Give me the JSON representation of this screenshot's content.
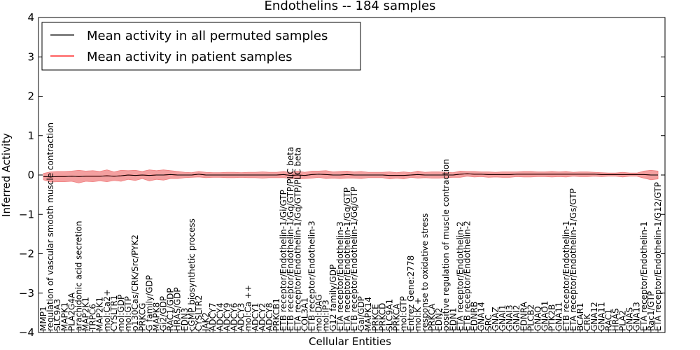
{
  "chart_data": {
    "type": "line",
    "title": "Endothelins -- 184 samples",
    "xlabel": "Cellular Entities",
    "ylabel": "Inferred Activity",
    "ylim": [
      -4,
      4
    ],
    "yticks": [
      "4",
      "3",
      "2",
      "1",
      "0",
      "−1",
      "−2",
      "−3",
      "−4"
    ],
    "ytick_values": [
      4,
      3,
      2,
      1,
      0,
      -1,
      -2,
      -3,
      -4
    ],
    "grid": false,
    "legend_position": "top-left",
    "legend": [
      {
        "label": "Mean activity in all permuted samples",
        "color": "#000000"
      },
      {
        "label": "Mean activity in patient samples",
        "color": "#ff0000"
      }
    ],
    "band_color": "#f08080",
    "categories": [
      "MMP1",
      "regulation of vascular smooth muscle contraction",
      "SLC9A3",
      "MAPK1",
      "PLA2G4A",
      "arachidonic acid secretion",
      "MAP2K1",
      "TRPC6",
      "MAP2K1",
      "mol:Ca2+",
      "CYSLTR1",
      "mol:GDP",
      "mol:GTP",
      "p130Cas/CRK/Src/PYK2",
      "PRKCG",
      "G family/GDP",
      "MAPK8",
      "Gi2/GDP",
      "RAC1/GDP",
      "HRAS/GDP",
      "EDN3",
      "cGMP biosynthetic process",
      "CYSLTR2",
      "JAK2",
      "ADCY7",
      "ADCY4",
      "ADCY9",
      "ADCY6",
      "ADCY3",
      "mol:Ca ++",
      "ADCY1",
      "ADCY2",
      "ADCY8",
      "PRKCB1",
      "ETB receptor/Endothelin-1/Gi/GTP",
      "ETB receptor/Endothelin-1/Gq/GTP/PLC beta",
      "ETA receptor/Endothelin-1/Gq/GTP/PLC beta",
      "COL3A1",
      "ETB receptor/Endothelin-3",
      "mol:DAG",
      "mol:IP3",
      "G12 family/GDP",
      "ETA receptor/Endothelin-3",
      "ETA receptor/Endothelin-1/Gq/GTP",
      "ETB receptor/Endothelin-1/Gq/GTP",
      "Gai/GDP",
      "MAPK14",
      "PRKCE",
      "PRKCD",
      "SLC9A1",
      "PRKCA",
      "mol:GTP",
      "Entrez Gene:2778",
      "mol:K +",
      "response to oxidative stress",
      "PRKCA",
      "EDN2",
      "positive regulation of muscle contraction",
      "EDN1",
      "ETA receptor/Endothelin-2",
      "ETB receptor/Endothelin-2",
      "EDNRB",
      "GNA14",
      "SRC",
      "GNAZ",
      "GNAI1",
      "GNAI3",
      "GNAI2",
      "EDNRA",
      "PLCB2",
      "GNAQ",
      "GNAO1",
      "PTK2B",
      "GNA11",
      "ETB receptor/Endothelin-1",
      "ETA receptor/Endothelin-1/Gs/GTP",
      "BCAR1",
      "CRK",
      "GNA12",
      "GNA11",
      "RAC1",
      "HRAS",
      "PLA2",
      "GNAS",
      "GNA13",
      "ETA receptor/Endothelin-1",
      "Rac1/GTP",
      "ETA receptor/Endothelin-1/G12/GTP"
    ],
    "series": [
      {
        "name": "Mean activity in all permuted samples",
        "color": "#000000",
        "values": [
          -0.04,
          -0.05,
          -0.04,
          -0.04,
          -0.03,
          -0.04,
          -0.03,
          -0.03,
          -0.03,
          -0.02,
          -0.03,
          -0.02,
          0.0,
          -0.01,
          0.0,
          -0.01,
          0.0,
          0.0,
          0.01,
          0.0,
          0.0,
          0.0,
          0.02,
          0.0,
          0.0,
          0.0,
          0.0,
          0.0,
          0.0,
          0.0,
          0.0,
          0.0,
          0.0,
          0.0,
          0.01,
          -0.01,
          0.0,
          -0.01,
          0.01,
          0.02,
          0.01,
          0.0,
          0.0,
          0.01,
          0.0,
          0.0,
          0.0,
          0.0,
          0.0,
          -0.01,
          -0.01,
          -0.01,
          0.0,
          0.01,
          0.0,
          0.0,
          0.0,
          0.0,
          0.0,
          0.02,
          0.03,
          0.02,
          0.02,
          0.01,
          0.01,
          0.01,
          0.01,
          0.02,
          0.02,
          0.02,
          0.02,
          0.02,
          0.02,
          0.02,
          0.02,
          0.02,
          0.02,
          0.02,
          0.02,
          0.01,
          0.01,
          0.01,
          0.01,
          0.01,
          0.01,
          0.01,
          0.0,
          0.0
        ]
      },
      {
        "name": "Mean activity in patient samples",
        "color": "#ff0000",
        "values": [
          -0.04,
          -0.05,
          -0.04,
          -0.04,
          -0.03,
          -0.04,
          -0.03,
          -0.03,
          -0.03,
          -0.02,
          -0.03,
          -0.02,
          0.0,
          -0.01,
          0.0,
          -0.01,
          0.0,
          0.0,
          0.01,
          0.0,
          0.0,
          0.0,
          0.02,
          0.0,
          0.0,
          0.0,
          0.0,
          0.0,
          0.0,
          0.0,
          0.0,
          0.0,
          0.0,
          0.0,
          0.01,
          -0.01,
          0.0,
          -0.01,
          0.01,
          0.02,
          0.01,
          0.0,
          0.0,
          0.01,
          0.0,
          0.0,
          0.0,
          0.0,
          0.0,
          -0.01,
          -0.01,
          -0.01,
          0.0,
          0.01,
          0.0,
          0.0,
          0.0,
          0.0,
          0.0,
          0.02,
          0.03,
          0.02,
          0.02,
          0.01,
          0.01,
          0.01,
          0.01,
          0.02,
          0.02,
          0.02,
          0.02,
          0.02,
          0.02,
          0.02,
          0.02,
          0.02,
          0.02,
          0.02,
          0.02,
          0.01,
          0.01,
          0.01,
          0.01,
          0.01,
          0.01,
          0.01,
          0.0,
          0.0
        ],
        "band_half_width": [
          0.08,
          0.13,
          0.13,
          0.13,
          0.13,
          0.16,
          0.13,
          0.14,
          0.12,
          0.15,
          0.11,
          0.14,
          0.11,
          0.13,
          0.09,
          0.14,
          0.11,
          0.13,
          0.1,
          0.09,
          0.07,
          0.06,
          0.07,
          0.07,
          0.06,
          0.06,
          0.07,
          0.07,
          0.06,
          0.07,
          0.07,
          0.08,
          0.07,
          0.07,
          0.08,
          0.08,
          0.1,
          0.08,
          0.09,
          0.08,
          0.1,
          0.08,
          0.09,
          0.09,
          0.08,
          0.09,
          0.07,
          0.07,
          0.07,
          0.09,
          0.07,
          0.09,
          0.06,
          0.09,
          0.07,
          0.08,
          0.08,
          0.07,
          0.06,
          0.08,
          0.06,
          0.07,
          0.06,
          0.07,
          0.06,
          0.07,
          0.07,
          0.06,
          0.07,
          0.07,
          0.06,
          0.06,
          0.07,
          0.06,
          0.07,
          0.05,
          0.06,
          0.06,
          0.05,
          0.05,
          0.04,
          0.04,
          0.06,
          0.04,
          0.04,
          0.09,
          0.12,
          0.1
        ]
      }
    ]
  }
}
